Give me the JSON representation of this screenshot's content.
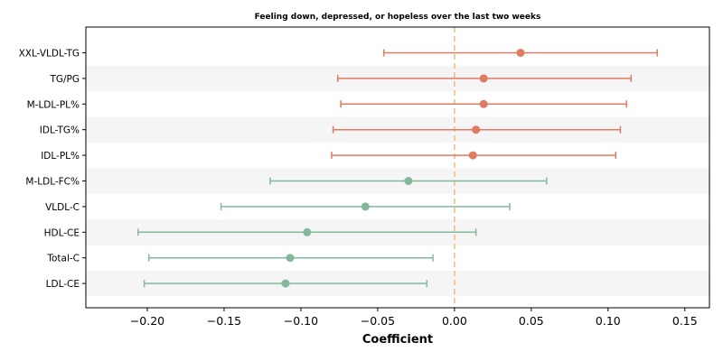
{
  "chart_data": {
    "type": "forest",
    "title": "Feeling down, depressed, or hopeless over the last two weeks",
    "xlabel": "Coefficient",
    "ylabel": "",
    "xlim": [
      -0.24,
      0.166
    ],
    "xticks": [
      -0.2,
      -0.15,
      -0.1,
      -0.05,
      0.0,
      0.05,
      0.1,
      0.15
    ],
    "xtick_labels": [
      "−0.20",
      "−0.15",
      "−0.10",
      "−0.05",
      "0.00",
      "0.05",
      "0.10",
      "0.15"
    ],
    "reference_line": 0.0,
    "colors": {
      "positive": "#e07b62",
      "negative": "#84b89c",
      "reference": "#f2b97a",
      "band": "#f5f5f5"
    },
    "rows": [
      {
        "label": "XXL-VLDL-TG",
        "estimate": 0.043,
        "lower": -0.046,
        "upper": 0.132,
        "direction": "positive"
      },
      {
        "label": "TG/PG",
        "estimate": 0.019,
        "lower": -0.076,
        "upper": 0.115,
        "direction": "positive"
      },
      {
        "label": "M-LDL-PL%",
        "estimate": 0.019,
        "lower": -0.074,
        "upper": 0.112,
        "direction": "positive"
      },
      {
        "label": "IDL-TG%",
        "estimate": 0.014,
        "lower": -0.079,
        "upper": 0.108,
        "direction": "positive"
      },
      {
        "label": "IDL-PL%",
        "estimate": 0.012,
        "lower": -0.08,
        "upper": 0.105,
        "direction": "positive"
      },
      {
        "label": "M-LDL-FC%",
        "estimate": -0.03,
        "lower": -0.12,
        "upper": 0.06,
        "direction": "negative"
      },
      {
        "label": "VLDL-C",
        "estimate": -0.058,
        "lower": -0.152,
        "upper": 0.036,
        "direction": "negative"
      },
      {
        "label": "HDL-CE",
        "estimate": -0.096,
        "lower": -0.206,
        "upper": 0.014,
        "direction": "negative"
      },
      {
        "label": "Total-C",
        "estimate": -0.107,
        "lower": -0.199,
        "upper": -0.014,
        "direction": "negative"
      },
      {
        "label": "LDL-CE",
        "estimate": -0.11,
        "lower": -0.202,
        "upper": -0.018,
        "direction": "negative"
      }
    ]
  }
}
